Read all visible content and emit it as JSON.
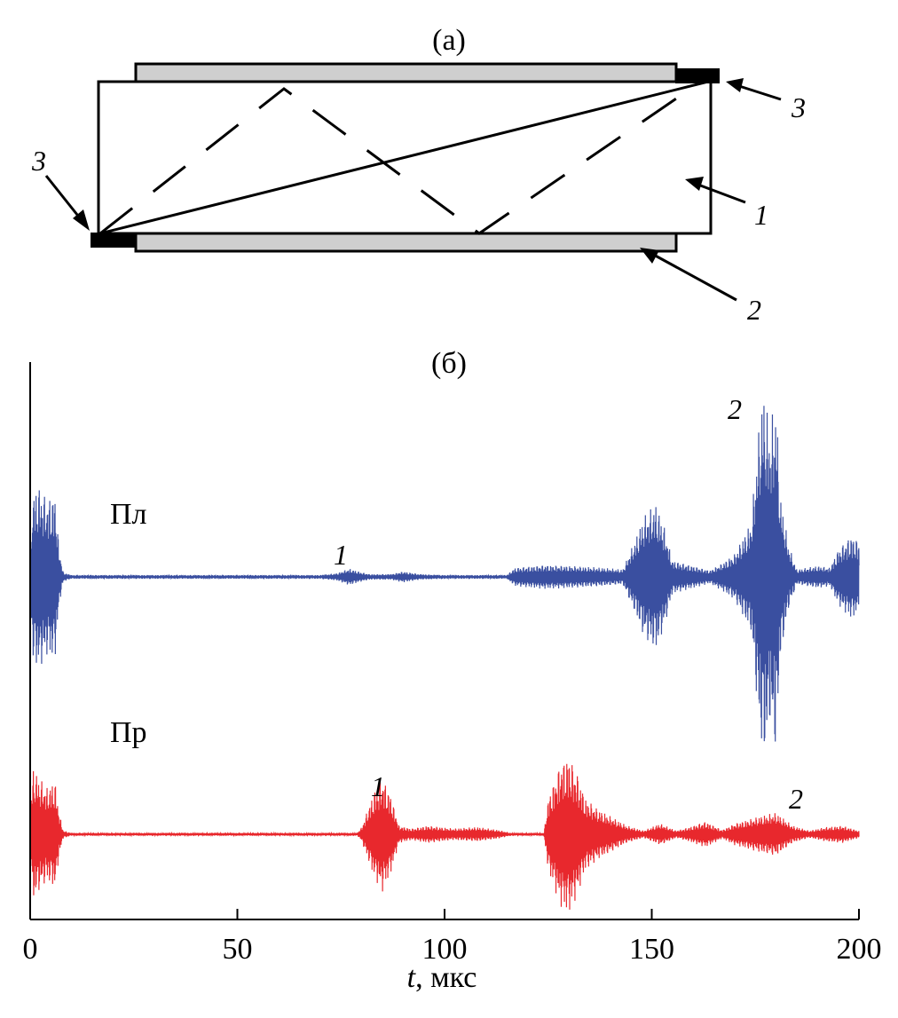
{
  "panel_a": {
    "label": "(а)",
    "callouts": [
      {
        "id": "1",
        "text": "1"
      },
      {
        "id": "2",
        "text": "2"
      },
      {
        "id": "3_left",
        "text": "3"
      },
      {
        "id": "3_right",
        "text": "3"
      }
    ]
  },
  "panel_b": {
    "label": "(б)",
    "colors": {
      "top": "#3a4fa0",
      "bottom": "#e8282d"
    },
    "trace_labels": {
      "top": "Пл",
      "bottom": "Пр"
    },
    "peak_labels": {
      "top_1": "1",
      "top_2": "2",
      "bottom_1": "1",
      "bottom_2": "2"
    }
  },
  "chart_data": {
    "type": "line",
    "title": "",
    "xlabel_var": "t",
    "xlabel_unit": ", мкс",
    "xlim": [
      0,
      200
    ],
    "xticks": [
      "0",
      "50",
      "100",
      "150",
      "200"
    ],
    "ylabel": "",
    "series": [
      {
        "name": "Пл",
        "envelope": [
          [
            0,
            0.05
          ],
          [
            0.5,
            0.9
          ],
          [
            2,
            1.0
          ],
          [
            4,
            0.85
          ],
          [
            6,
            0.9
          ],
          [
            7,
            0.3
          ],
          [
            8,
            0.05
          ],
          [
            10,
            0.02
          ],
          [
            70,
            0.02
          ],
          [
            74,
            0.04
          ],
          [
            77,
            0.09
          ],
          [
            80,
            0.05
          ],
          [
            82,
            0.03
          ],
          [
            87,
            0.03
          ],
          [
            90,
            0.06
          ],
          [
            94,
            0.03
          ],
          [
            100,
            0.02
          ],
          [
            115,
            0.02
          ],
          [
            117,
            0.1
          ],
          [
            124,
            0.13
          ],
          [
            130,
            0.12
          ],
          [
            138,
            0.1
          ],
          [
            143,
            0.08
          ],
          [
            146,
            0.4
          ],
          [
            148,
            0.65
          ],
          [
            151,
            0.8
          ],
          [
            153,
            0.55
          ],
          [
            155,
            0.18
          ],
          [
            160,
            0.12
          ],
          [
            164,
            0.07
          ],
          [
            167,
            0.15
          ],
          [
            170,
            0.25
          ],
          [
            174,
            0.6
          ],
          [
            176,
            1.7
          ],
          [
            177,
            2.05
          ],
          [
            178.5,
            1.6
          ],
          [
            180,
            1.95
          ],
          [
            181,
            0.9
          ],
          [
            183,
            0.35
          ],
          [
            185,
            0.08
          ],
          [
            190,
            0.12
          ],
          [
            193,
            0.1
          ],
          [
            195,
            0.3
          ],
          [
            198,
            0.45
          ],
          [
            200,
            0.4
          ]
        ]
      },
      {
        "name": "Пр",
        "envelope": [
          [
            0,
            0.05
          ],
          [
            0.5,
            0.95
          ],
          [
            2,
            0.8
          ],
          [
            4,
            0.65
          ],
          [
            6,
            0.75
          ],
          [
            7,
            0.3
          ],
          [
            8,
            0.05
          ],
          [
            10,
            0.02
          ],
          [
            79,
            0.02
          ],
          [
            80,
            0.1
          ],
          [
            83,
            0.6
          ],
          [
            85,
            0.8
          ],
          [
            87,
            0.55
          ],
          [
            89,
            0.12
          ],
          [
            92,
            0.08
          ],
          [
            96,
            0.12
          ],
          [
            102,
            0.08
          ],
          [
            108,
            0.1
          ],
          [
            113,
            0.06
          ],
          [
            116,
            0.02
          ],
          [
            124,
            0.02
          ],
          [
            125,
            0.5
          ],
          [
            128,
            1.0
          ],
          [
            130,
            1.1
          ],
          [
            132,
            0.85
          ],
          [
            134,
            0.5
          ],
          [
            137,
            0.35
          ],
          [
            140,
            0.25
          ],
          [
            144,
            0.12
          ],
          [
            148,
            0.05
          ],
          [
            152,
            0.15
          ],
          [
            156,
            0.05
          ],
          [
            159,
            0.1
          ],
          [
            163,
            0.18
          ],
          [
            167,
            0.06
          ],
          [
            170,
            0.15
          ],
          [
            176,
            0.25
          ],
          [
            180,
            0.3
          ],
          [
            184,
            0.12
          ],
          [
            188,
            0.05
          ],
          [
            192,
            0.1
          ],
          [
            196,
            0.12
          ],
          [
            200,
            0.05
          ]
        ]
      }
    ]
  }
}
